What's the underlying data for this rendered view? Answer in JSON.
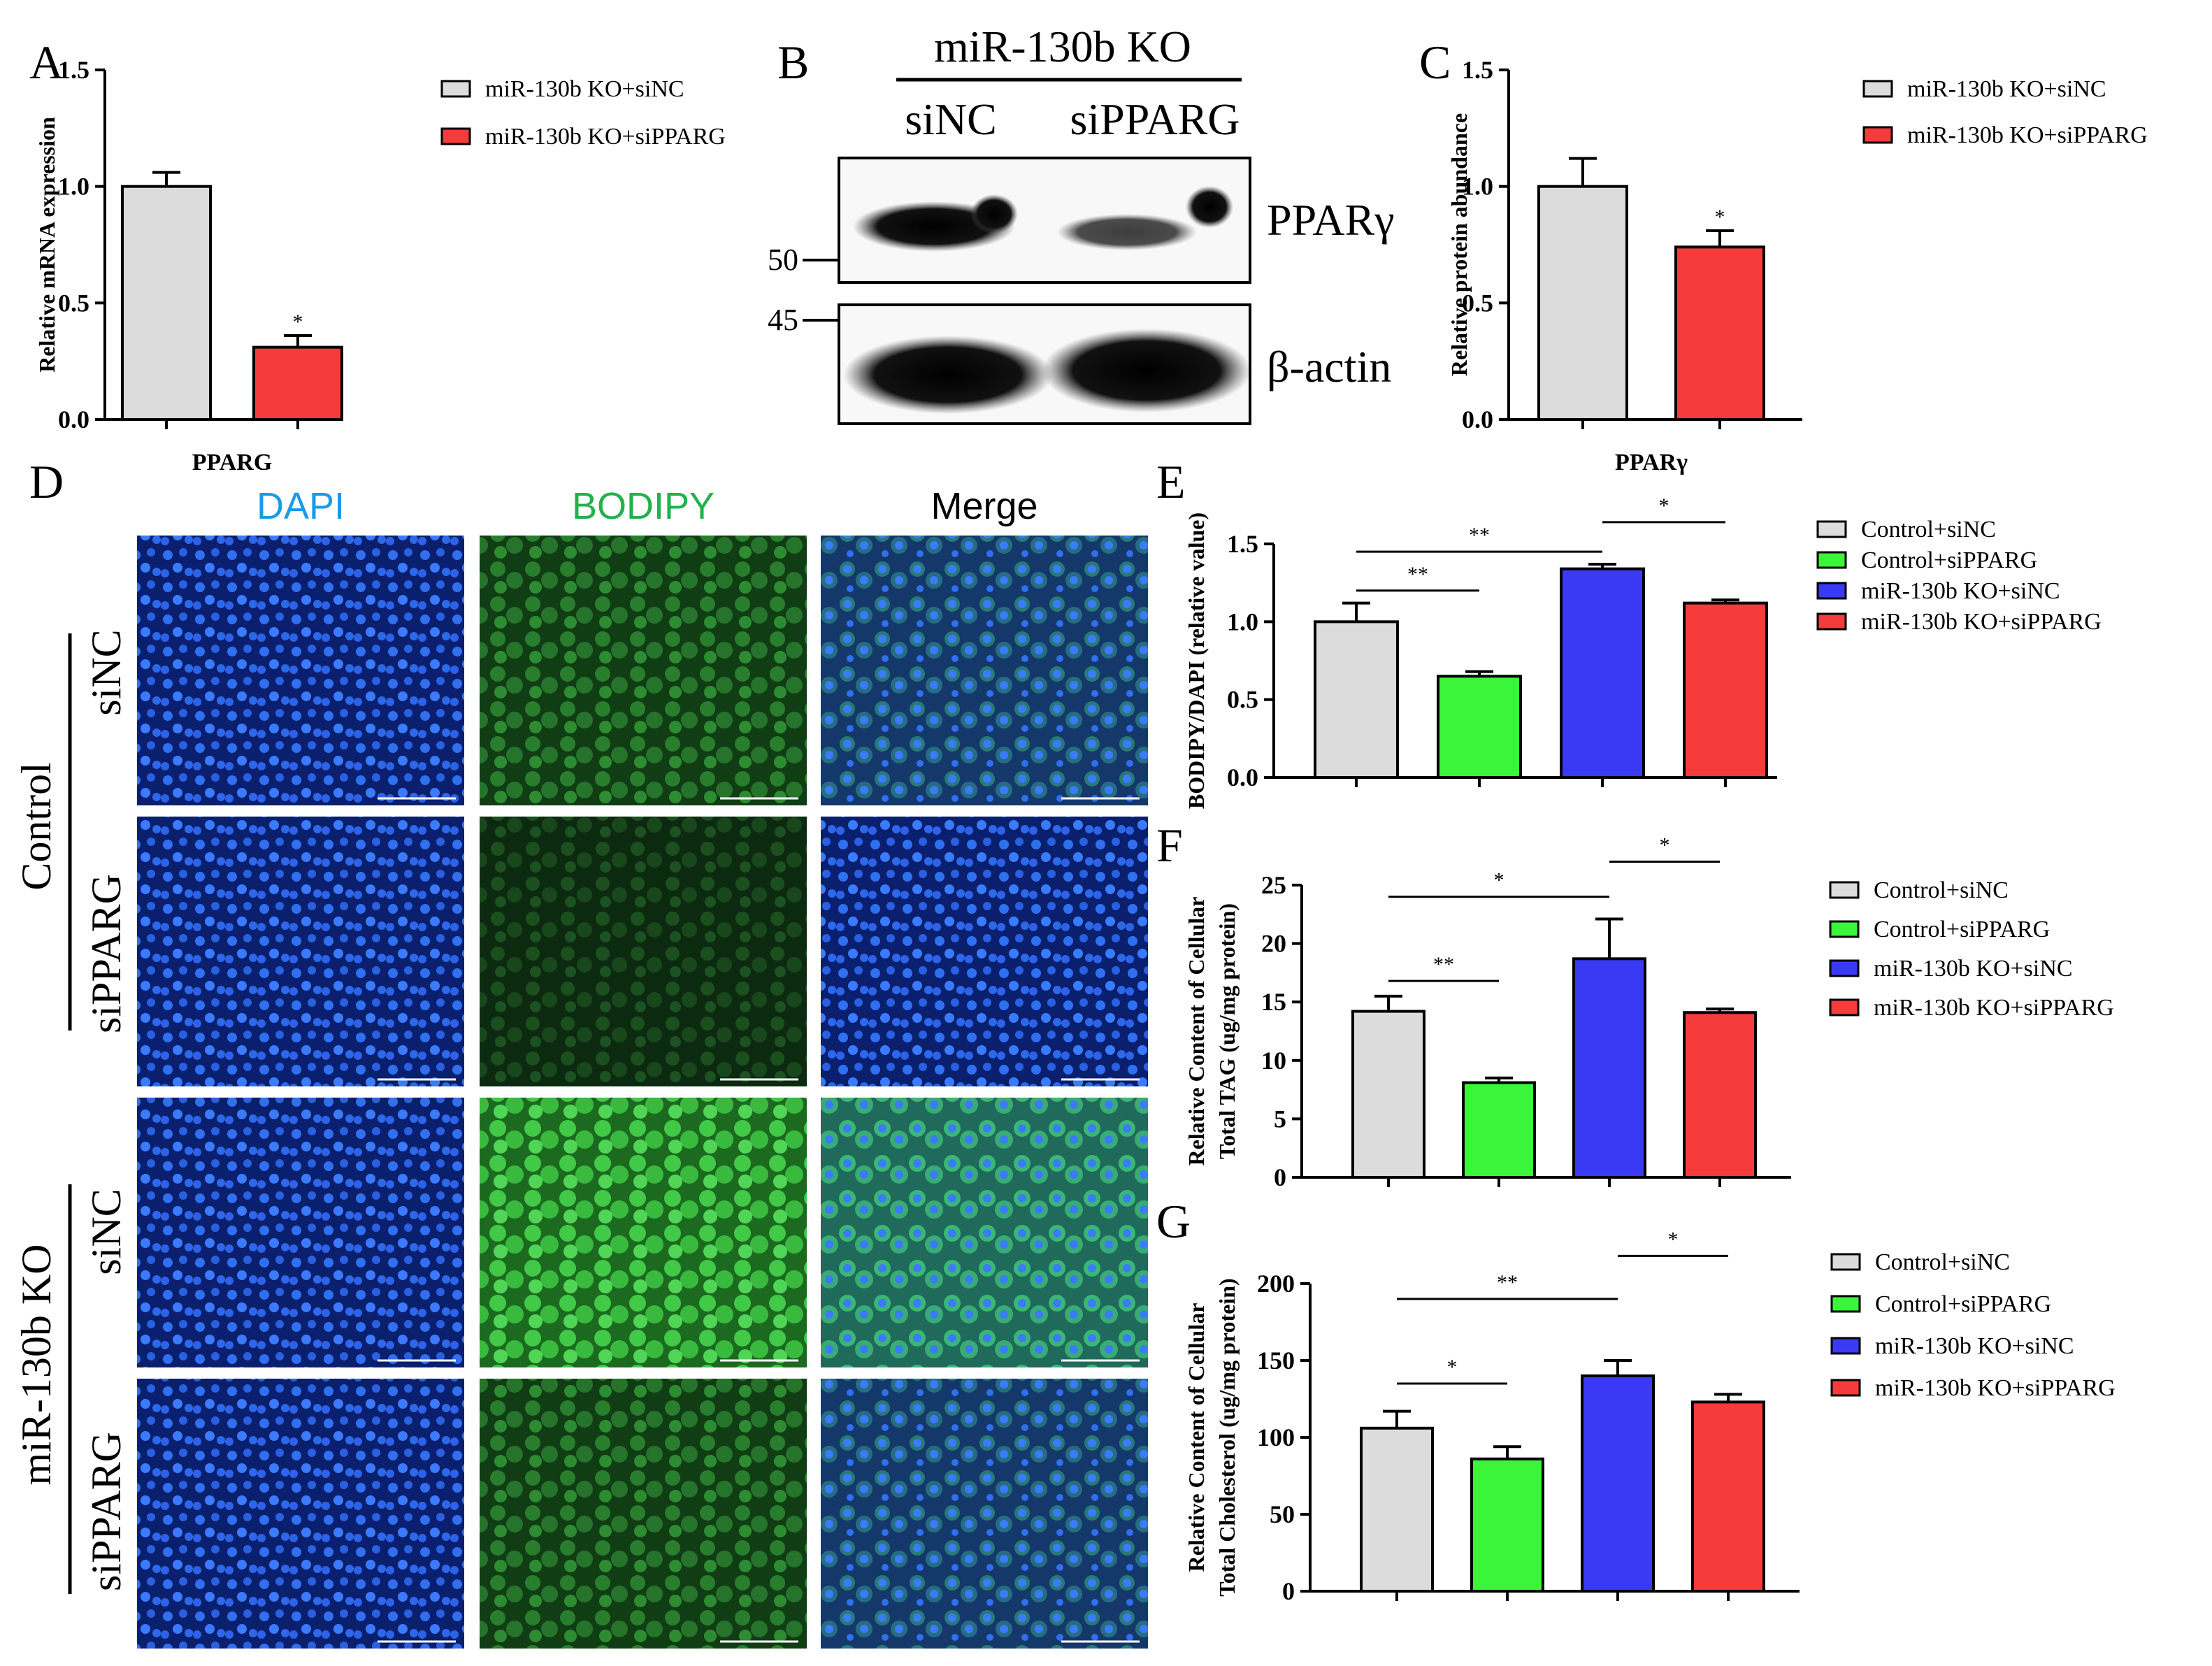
{
  "panels": {
    "A": "A",
    "B": "B",
    "C": "C",
    "D": "D",
    "E": "E",
    "F": "F",
    "G": "G"
  },
  "blot": {
    "header": "miR-130b KO",
    "lanes": [
      "siNC",
      "siPPARG"
    ],
    "bands": [
      "PPARγ",
      "β-actin"
    ],
    "mw_markers": [
      "50",
      "45"
    ]
  },
  "microscopy": {
    "columns": [
      "DAPI",
      "BODIPY",
      "Merge"
    ],
    "groups": [
      "Control",
      "miR-130b KO"
    ],
    "rows": [
      "siNC",
      "siPPARG",
      "siNC",
      "siPPARG"
    ],
    "column_colors": [
      "#1a9be8",
      "#22b14c",
      "#000000"
    ]
  },
  "colors": {
    "grey": "#dcdcdc",
    "green": "#3bf53b",
    "blue": "#3a3af5",
    "red": "#f53b3b"
  },
  "chart_data": [
    {
      "id": "A",
      "type": "bar",
      "categories": [
        "miR-130b KO+siNC",
        "miR-130b KO+siPPARG"
      ],
      "values": [
        1.0,
        0.31
      ],
      "errors": [
        0.06,
        0.05
      ],
      "colors": [
        "#dcdcdc",
        "#f53b3b"
      ],
      "xlabel": "PPARG",
      "ylabel": "Relative mRNA expression",
      "ylim": [
        0,
        1.5
      ],
      "yticks": [
        "0.0",
        "0.5",
        "1.0",
        "1.5"
      ],
      "legend": [
        "miR-130b KO+siNC",
        "miR-130b KO+siPPARG"
      ],
      "significance": [
        {
          "bar": 1,
          "label": "*"
        }
      ]
    },
    {
      "id": "C",
      "type": "bar",
      "categories": [
        "miR-130b KO+siNC",
        "miR-130b KO+siPPARG"
      ],
      "values": [
        1.0,
        0.74
      ],
      "errors": [
        0.12,
        0.07
      ],
      "colors": [
        "#dcdcdc",
        "#f53b3b"
      ],
      "xlabel": "PPARγ",
      "ylabel": "Relative protein abundance",
      "ylim": [
        0,
        1.5
      ],
      "yticks": [
        "0.0",
        "0.5",
        "1.0",
        "1.5"
      ],
      "legend": [
        "miR-130b KO+siNC",
        "miR-130b KO+siPPARG"
      ],
      "significance": [
        {
          "bar": 1,
          "label": "*"
        }
      ]
    },
    {
      "id": "E",
      "type": "bar",
      "categories": [
        "Control+siNC",
        "Control+siPPARG",
        "miR-130b KO+siNC",
        "miR-130b KO+siPPARG"
      ],
      "values": [
        1.0,
        0.65,
        1.34,
        1.12
      ],
      "errors": [
        0.12,
        0.03,
        0.03,
        0.02
      ],
      "colors": [
        "#dcdcdc",
        "#3bf53b",
        "#3a3af5",
        "#f53b3b"
      ],
      "ylabel": "BODIPY/DAPI (relative value)",
      "ylim": [
        0,
        1.5
      ],
      "yticks": [
        "0.0",
        "0.5",
        "1.0",
        "1.5"
      ],
      "legend": [
        "Control+siNC",
        "Control+siPPARG",
        "miR-130b KO+siNC",
        "miR-130b KO+siPPARG"
      ],
      "brackets": [
        {
          "from": 0,
          "to": 1,
          "label": "**",
          "y": 1.2
        },
        {
          "from": 0,
          "to": 2,
          "label": "**",
          "y": 1.45
        },
        {
          "from": 2,
          "to": 3,
          "label": "*",
          "y": 1.64
        }
      ]
    },
    {
      "id": "F",
      "type": "bar",
      "categories": [
        "Control+siNC",
        "Control+siPPARG",
        "miR-130b KO+siNC",
        "miR-130b KO+siPPARG"
      ],
      "values": [
        14.2,
        8.1,
        18.7,
        14.1
      ],
      "errors": [
        1.3,
        0.4,
        3.4,
        0.3
      ],
      "colors": [
        "#dcdcdc",
        "#3bf53b",
        "#3a3af5",
        "#f53b3b"
      ],
      "ylabel": "Relative Content of Cellular Total TAG (ug/mg protein)",
      "ylim": [
        0,
        25
      ],
      "yticks": [
        "0",
        "5",
        "10",
        "15",
        "20",
        "25"
      ],
      "legend": [
        "Control+siNC",
        "Control+siPPARG",
        "miR-130b KO+siNC",
        "miR-130b KO+siPPARG"
      ],
      "brackets": [
        {
          "from": 0,
          "to": 1,
          "label": "**",
          "y": 16.8
        },
        {
          "from": 0,
          "to": 2,
          "label": "*",
          "y": 24.0
        },
        {
          "from": 2,
          "to": 3,
          "label": "*",
          "y": 27.0
        }
      ]
    },
    {
      "id": "G",
      "type": "bar",
      "categories": [
        "Control+siNC",
        "Control+siPPARG",
        "miR-130b KO+siNC",
        "miR-130b KO+siPPARG"
      ],
      "values": [
        106,
        86,
        140,
        123
      ],
      "errors": [
        11,
        8,
        10,
        5
      ],
      "colors": [
        "#dcdcdc",
        "#3bf53b",
        "#3a3af5",
        "#f53b3b"
      ],
      "ylabel": "Relative Content of Cellular Total Cholesterol (ug/mg protein)",
      "ylim": [
        0,
        200
      ],
      "yticks": [
        "0",
        "50",
        "100",
        "150",
        "200"
      ],
      "legend": [
        "Control+siNC",
        "Control+siPPARG",
        "miR-130b KO+siNC",
        "miR-130b KO+siPPARG"
      ],
      "brackets": [
        {
          "from": 0,
          "to": 1,
          "label": "*",
          "y": 135
        },
        {
          "from": 0,
          "to": 2,
          "label": "**",
          "y": 190
        },
        {
          "from": 2,
          "to": 3,
          "label": "*",
          "y": 218
        }
      ]
    }
  ]
}
